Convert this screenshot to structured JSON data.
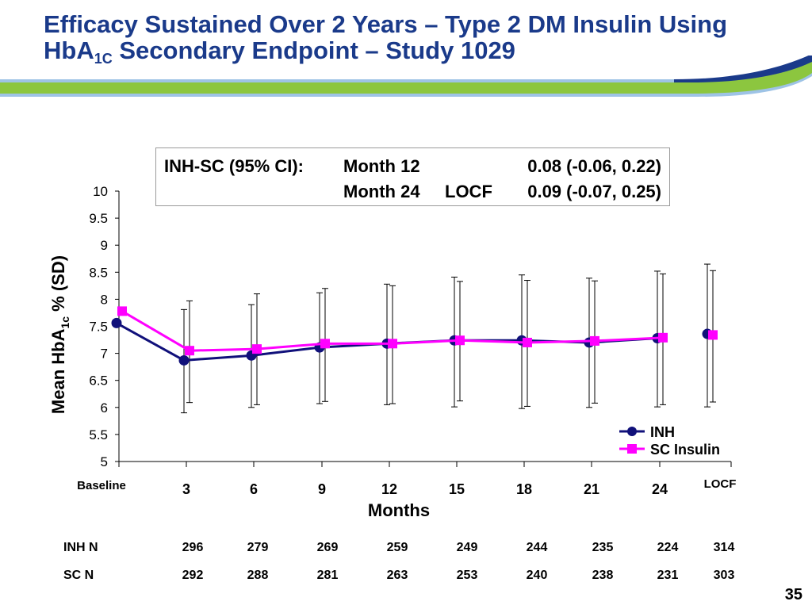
{
  "slide": {
    "title_line1": "Efficacy Sustained Over 2 Years – Type 2 DM Insulin Using",
    "title_line2_pre": "HbA",
    "title_line2_sub": "1C",
    "title_line2_post": " Secondary Endpoint – Study 1029",
    "page_number": "35",
    "colors": {
      "title": "#1a3a8a",
      "banner_blue": "#1a3a8a",
      "banner_green": "#8cc63f",
      "banner_light_blue": "#9ec3e6"
    }
  },
  "ci_box": {
    "label": "INH-SC (95% CI):",
    "rows": [
      {
        "time": "Month 12",
        "value": "0.08 (-0.06, 0.22)"
      },
      {
        "time": "Month 24",
        "method": "LOCF",
        "value": "0.09 (-0.07, 0.25)"
      }
    ]
  },
  "chart_data": {
    "type": "line",
    "title": "",
    "xlabel": "Months",
    "ylabel": "Mean HbA1c % (SD)",
    "ylabel_parts": {
      "pre": "Mean HbA",
      "sub": "1c",
      "post": " % (SD)"
    },
    "ylim": [
      5,
      10
    ],
    "yticks": [
      5,
      5.5,
      6,
      6.5,
      7,
      7.5,
      8,
      8.5,
      9,
      9.5,
      10
    ],
    "ytick_labels": [
      "5",
      "5.5",
      "6",
      "6.5",
      "7",
      "7.5",
      "8",
      "8.5",
      "9",
      "9.5",
      "10"
    ],
    "categories": [
      "Baseline",
      "3",
      "6",
      "9",
      "12",
      "15",
      "18",
      "21",
      "24",
      "LOCF"
    ],
    "grid": false,
    "legend_position": "bottom-right",
    "series": [
      {
        "name": "INH",
        "color": "#10107a",
        "marker": "circle",
        "values": [
          7.56,
          6.87,
          6.96,
          7.11,
          7.18,
          7.24,
          7.24,
          7.2,
          7.28,
          7.36
        ],
        "sd_low": [
          null,
          5.9,
          6.0,
          6.07,
          6.05,
          6.01,
          5.98,
          6.0,
          6.01,
          6.01
        ],
        "sd_high": [
          null,
          7.81,
          7.9,
          8.12,
          8.28,
          8.41,
          8.45,
          8.39,
          8.52,
          8.65
        ]
      },
      {
        "name": "SC Insulin",
        "color": "#ff00ff",
        "marker": "square",
        "values": [
          7.78,
          7.05,
          7.08,
          7.18,
          7.18,
          7.24,
          7.2,
          7.23,
          7.29,
          7.34
        ],
        "sd_low": [
          null,
          6.09,
          6.05,
          6.11,
          6.07,
          6.12,
          6.02,
          6.08,
          6.05,
          6.1
        ],
        "sd_high": [
          null,
          7.97,
          8.1,
          8.2,
          8.25,
          8.33,
          8.35,
          8.34,
          8.47,
          8.53
        ]
      }
    ]
  },
  "n_table": {
    "rows": [
      {
        "label": "INH N",
        "values": [
          "296",
          "279",
          "269",
          "259",
          "249",
          "244",
          "235",
          "224",
          "314"
        ]
      },
      {
        "label": "SC  N",
        "values": [
          "292",
          "288",
          "281",
          "263",
          "253",
          "240",
          "238",
          "231",
          "303"
        ]
      }
    ]
  }
}
